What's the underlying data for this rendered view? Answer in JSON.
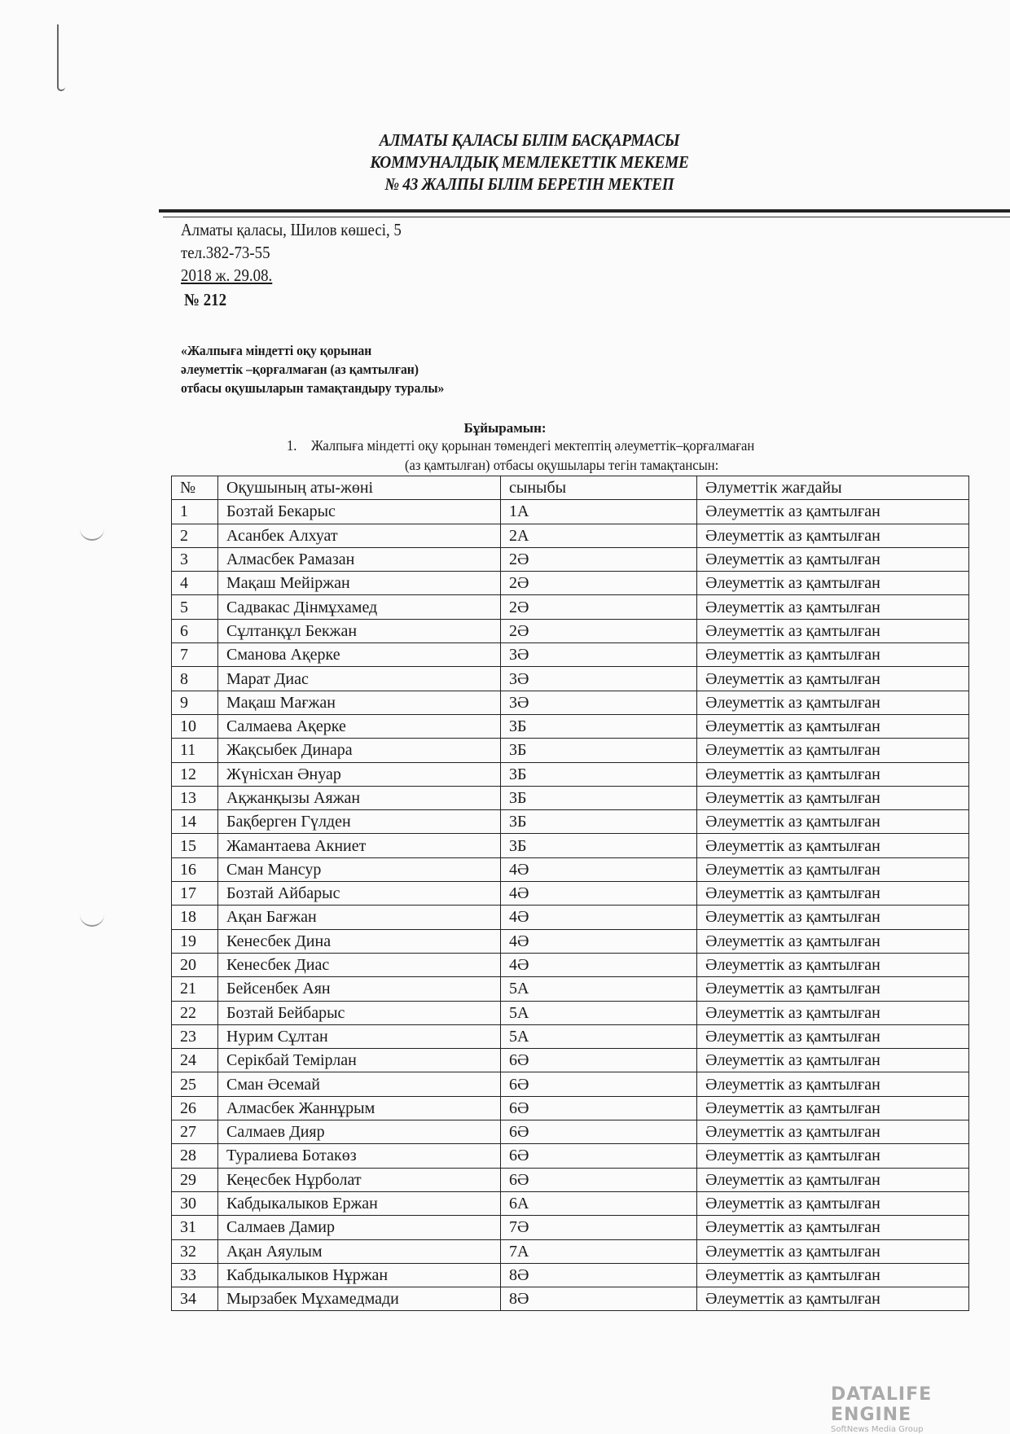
{
  "header": {
    "line1": "АЛМАТЫ  ҚАЛАСЫ БІЛІМ БАСҚАРМАСЫ",
    "line2": "КОММУНАЛДЫҚ МЕМЛЕКЕТТІК МЕКЕМЕ",
    "line3": "№ 43  ЖАЛПЫ БІЛІМ БЕРЕТІН МЕКТЕП"
  },
  "address": {
    "street": "Алматы қаласы, Шилов көшесі, 5",
    "phone": "тел.382-73-55",
    "date": "2018 ж. 29.08.",
    "number": "№ 212"
  },
  "subject": {
    "line1": "«Жалпыға міндетті оқу қорынан",
    "line2": "әлеуметтік –қорғалмаған (аз қамтылған)",
    "line3": " отбасы оқушыларын тамақтандыру туралы»"
  },
  "order": {
    "title": "Бұйырамын:",
    "item_num": "1.",
    "item_line1": "Жалпыға міндетті оқу қорынан төмендегі мектептің әлеуметтік–қорғалмаған",
    "item_line2": "(аз қамтылған) отбасы оқушылары тегін тамақтансын:"
  },
  "table": {
    "headers": [
      "№",
      "Оқушының аты-жөні",
      "сыныбы",
      "Әлуметтік жағдайы"
    ],
    "rows": [
      [
        "1",
        "Бозтай Бекарыс",
        "1А",
        "Әлеуметтік аз қамтылған"
      ],
      [
        "2",
        "Асанбек Алхуат",
        "2А",
        "Әлеуметтік аз қамтылған"
      ],
      [
        "3",
        "Алмасбек Рамазан",
        "2Ә",
        "Әлеуметтік аз қамтылған"
      ],
      [
        "4",
        "Мақаш Мейіржан",
        "2Ә",
        "Әлеуметтік аз қамтылған"
      ],
      [
        "5",
        "Садвакас Дінмұхамед",
        "2Ә",
        "Әлеуметтік аз қамтылған"
      ],
      [
        "6",
        "Сұлтанқұл Бекжан",
        "2Ә",
        "Әлеуметтік аз қамтылған"
      ],
      [
        "7",
        "Сманова Ақерке",
        "3Ә",
        "Әлеуметтік аз қамтылған"
      ],
      [
        "8",
        "Марат Диас",
        "3Ә",
        "Әлеуметтік аз қамтылған"
      ],
      [
        "9",
        "Мақаш Мағжан",
        "3Ә",
        "Әлеуметтік аз қамтылған"
      ],
      [
        "10",
        "Салмаева Ақерке",
        "3Б",
        "Әлеуметтік аз қамтылған"
      ],
      [
        "11",
        "Жақсыбек Динара",
        "3Б",
        "Әлеуметтік аз қамтылған"
      ],
      [
        "12",
        "Жүнісхан Әнуар",
        "3Б",
        "Әлеуметтік аз қамтылған"
      ],
      [
        "13",
        "Ақжанқызы Аяжан",
        "3Б",
        "Әлеуметтік аз қамтылған"
      ],
      [
        "14",
        "Бақберген Гүлден",
        "3Б",
        "Әлеуметтік аз қамтылған"
      ],
      [
        "15",
        "Жамантаева Акниет",
        "3Б",
        "Әлеуметтік аз қамтылған"
      ],
      [
        "16",
        "Сман Мансур",
        "4Ә",
        "Әлеуметтік аз қамтылған"
      ],
      [
        "17",
        "Бозтай Айбарыс",
        "4Ә",
        "Әлеуметтік аз қамтылған"
      ],
      [
        "18",
        "Ақан Бағжан",
        "4Ә",
        "Әлеуметтік аз қамтылған"
      ],
      [
        "19",
        "Кенесбек Дина",
        "4Ә",
        "Әлеуметтік аз қамтылған"
      ],
      [
        "20",
        "Кенесбек Диас",
        "4Ә",
        "Әлеуметтік аз қамтылған"
      ],
      [
        "21",
        "Бейсенбек Аян",
        "5А",
        "Әлеуметтік аз қамтылған"
      ],
      [
        "22",
        "Бозтай Бейбарыс",
        "5А",
        "Әлеуметтік аз қамтылған"
      ],
      [
        "23",
        "Нурим Сұлтан",
        "5А",
        "Әлеуметтік аз қамтылған"
      ],
      [
        "24",
        "Серікбай Темірлан",
        "6Ә",
        "Әлеуметтік аз қамтылған"
      ],
      [
        "25",
        "Сман Әсемай",
        "6Ә",
        "Әлеуметтік аз қамтылған"
      ],
      [
        "26",
        "Алмасбек Жаннұрым",
        "6Ә",
        "Әлеуметтік аз қамтылған"
      ],
      [
        "27",
        "Салмаев Дияр",
        "6Ә",
        "Әлеуметтік аз қамтылған"
      ],
      [
        "28",
        "Туралиева Ботакөз",
        "6Ә",
        "Әлеуметтік аз қамтылған"
      ],
      [
        "29",
        "Кеңесбек Нұрболат",
        "6Ә",
        "Әлеуметтік аз қамтылған"
      ],
      [
        "30",
        "Кабдыкалыков Ержан",
        "6А",
        "Әлеуметтік аз қамтылған"
      ],
      [
        "31",
        "Салмаев Дамир",
        "7Ә",
        "Әлеуметтік аз қамтылған"
      ],
      [
        "32",
        "Ақан Аяулым",
        "7А",
        "Әлеуметтік аз қамтылған"
      ],
      [
        "33",
        "Кабдыкалыков Нұржан",
        "8Ә",
        "Әлеуметтік аз қамтылған"
      ],
      [
        "34",
        "Мырзабек Мұхамедмади",
        "8Ә",
        "Әлеуметтік аз қамтылған"
      ]
    ]
  },
  "watermark": {
    "logo": "DATALIFE ENGINE",
    "sub": "SoftNews Media Group"
  }
}
